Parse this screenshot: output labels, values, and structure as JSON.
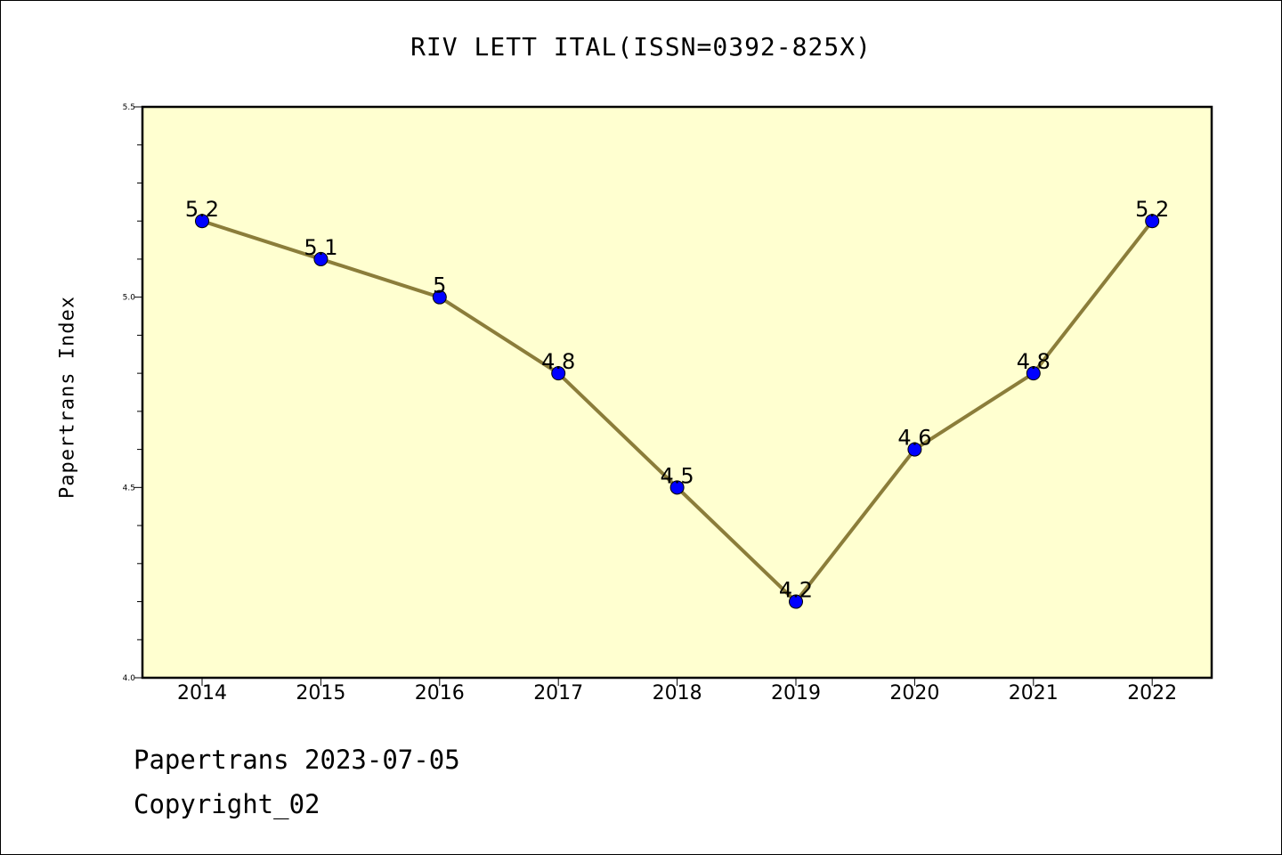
{
  "chart_data": {
    "type": "line",
    "title": "RIV LETT ITAL(ISSN=0392-825X)",
    "ylabel": "Papertrans Index",
    "xlabel": "",
    "categories": [
      "2014",
      "2015",
      "2016",
      "2017",
      "2018",
      "2019",
      "2020",
      "2021",
      "2022"
    ],
    "series": [
      {
        "values": [
          5.2,
          5.1,
          5.0,
          4.8,
          4.5,
          4.2,
          4.6,
          4.8,
          5.2
        ],
        "labels": [
          "5.2",
          "5.1",
          "5",
          "4.8",
          "4.5",
          "4.2",
          "4.6",
          "4.8",
          "5.2"
        ]
      }
    ],
    "ylim": [
      4.0,
      5.5
    ],
    "yticks": [
      "4.0",
      "4.5",
      "5.0",
      "5.5"
    ],
    "grid": false,
    "colors": {
      "plot_background": "#ffffd0",
      "line": "#8b7d3a",
      "marker": "#0000ff"
    }
  },
  "footer": {
    "date_line": "Papertrans 2023-07-05",
    "copyright": "Copyright_02"
  }
}
